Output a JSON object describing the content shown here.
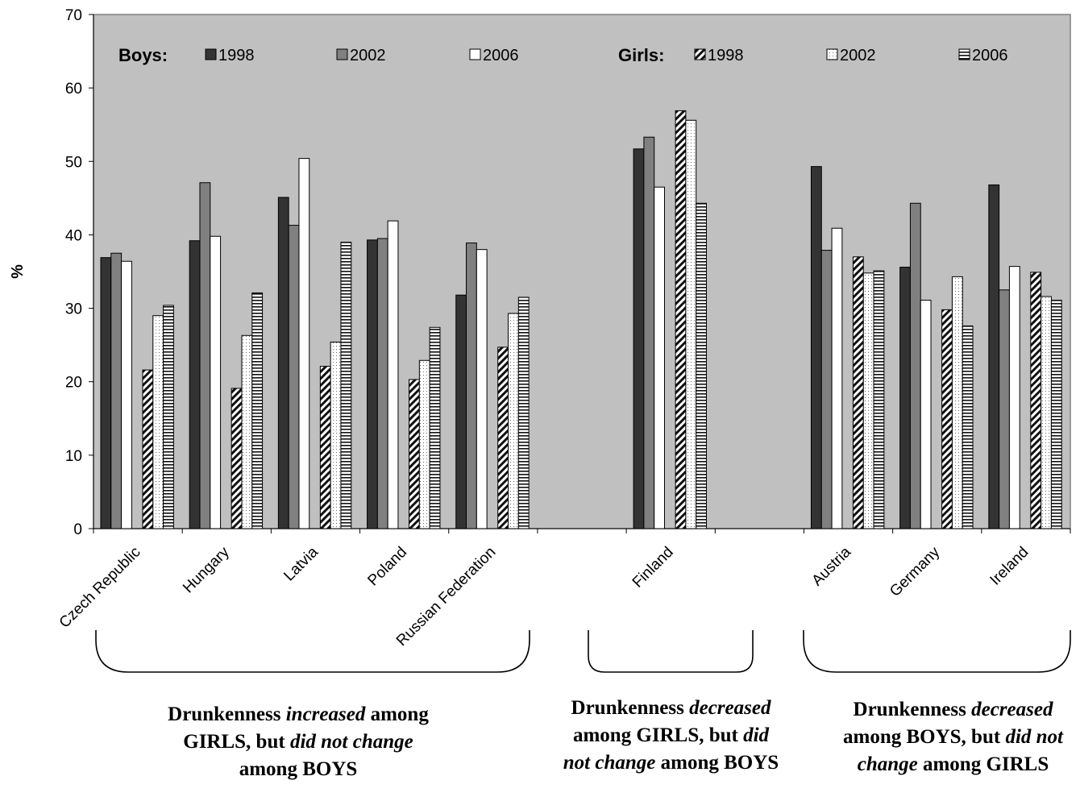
{
  "chart_data": {
    "type": "bar",
    "ylabel": "%",
    "ylim": [
      0,
      70
    ],
    "yticks": [
      "0",
      "10",
      "20",
      "30",
      "40",
      "50",
      "60",
      "70"
    ],
    "grid": false,
    "legend_position": "top",
    "legend_groups": [
      {
        "label": "Boys:",
        "series_indices": [
          0,
          1,
          2
        ]
      },
      {
        "label": "Girls:",
        "series_indices": [
          3,
          4,
          5
        ]
      }
    ],
    "categories": [
      "Czech Republic",
      "Hungary",
      "Latvia",
      "Poland",
      "Russian Federation",
      "Finland",
      "Austria",
      "Germany",
      "Ireland"
    ],
    "series": [
      {
        "name": "1998",
        "group": "Boys",
        "fill": "#333333",
        "pattern": "solid",
        "values": [
          36.9,
          39.2,
          45.1,
          39.3,
          31.8,
          51.7,
          49.3,
          35.6,
          46.8
        ]
      },
      {
        "name": "2002",
        "group": "Boys",
        "fill": "#808080",
        "pattern": "solid",
        "values": [
          37.5,
          47.1,
          41.3,
          39.5,
          38.9,
          53.3,
          37.9,
          44.3,
          32.5
        ]
      },
      {
        "name": "2006",
        "group": "Boys",
        "fill": "#ffffff",
        "pattern": "solid",
        "values": [
          36.4,
          39.8,
          50.4,
          41.9,
          38.0,
          46.5,
          40.9,
          31.1,
          35.7
        ]
      },
      {
        "name": "1998",
        "group": "Girls",
        "fill": "#ffffff",
        "pattern": "diagonal",
        "values": [
          21.6,
          19.1,
          22.1,
          20.3,
          24.7,
          56.9,
          37.0,
          29.8,
          34.9
        ]
      },
      {
        "name": "2002",
        "group": "Girls",
        "fill": "#ffffff",
        "pattern": "dots",
        "values": [
          29.0,
          26.3,
          25.4,
          22.9,
          29.3,
          55.6,
          34.8,
          34.3,
          31.6
        ]
      },
      {
        "name": "2006",
        "group": "Girls",
        "fill": "#ffffff",
        "pattern": "horizontal",
        "values": [
          30.4,
          32.1,
          39.0,
          27.4,
          31.5,
          44.3,
          35.1,
          27.6,
          31.1
        ]
      }
    ],
    "annotations": [
      {
        "pre": "Drunkenness ",
        "em": "increased",
        "mid": " among GIRLS, but ",
        "em2": "did not change",
        "post": " among BOYS"
      },
      {
        "pre": "Drunkenness ",
        "em": "decreased",
        "mid": " among GIRLS, but ",
        "em2": "did not change",
        "post": " among BOYS"
      },
      {
        "pre": "Drunkenness ",
        "em": "decreased",
        "mid": " among BOYS, but ",
        "em2": "did not change",
        "post": " among GIRLS"
      }
    ]
  },
  "colors": {
    "plot_background": "#c0c0c0",
    "axis": "#808080",
    "text": "#000000"
  }
}
